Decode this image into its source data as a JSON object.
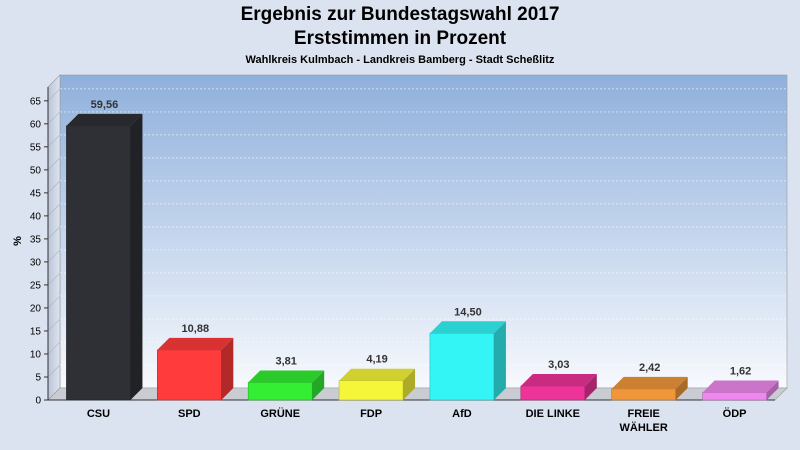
{
  "chart_data": {
    "type": "bar",
    "title": "Ergebnis zur Bundestagswahl 2017",
    "subtitle": "Erststimmen in Prozent",
    "caption": "Wahlkreis Kulmbach - Landkreis Bamberg - Stadt Scheßlitz",
    "ylabel": "%",
    "ylim": [
      0,
      68
    ],
    "yticks": [
      0,
      5,
      10,
      15,
      20,
      25,
      30,
      35,
      40,
      45,
      50,
      55,
      60,
      65
    ],
    "grid": true,
    "categories": [
      "CSU",
      "SPD",
      "GRÜNE",
      "FDP",
      "AfD",
      "DIE LINKE",
      "FREIE WÄHLER",
      "ÖDP"
    ],
    "category_lines": [
      [
        "CSU"
      ],
      [
        "SPD"
      ],
      [
        "GRÜNE"
      ],
      [
        "FDP"
      ],
      [
        "AfD"
      ],
      [
        "DIE LINKE"
      ],
      [
        "FREIE",
        "WÄHLER"
      ],
      [
        "ÖDP"
      ]
    ],
    "values": [
      59.56,
      10.88,
      3.81,
      4.19,
      14.5,
      3.03,
      2.42,
      1.62
    ],
    "value_labels": [
      "59,56",
      "10,88",
      "3,81",
      "4,19",
      "14,50",
      "3,03",
      "2,42",
      "1,62"
    ],
    "colors": [
      "#2f3035",
      "#ff3b3b",
      "#33ee33",
      "#f5f53a",
      "#33f5f5",
      "#ee3399",
      "#f0963a",
      "#ee88ee"
    ]
  }
}
